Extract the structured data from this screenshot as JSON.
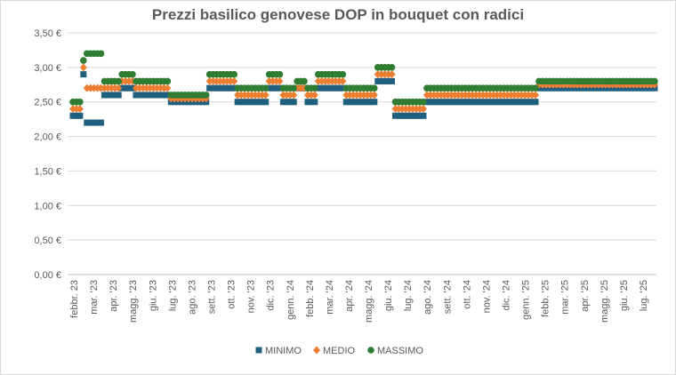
{
  "chart_data": {
    "type": "scatter",
    "title": "Prezzi basilico genovese DOP in bouquet con radici",
    "xlabel": "",
    "ylabel": "",
    "ylim": [
      0,
      3.5
    ],
    "y_ticks": [
      "0,00 €",
      "0,50 €",
      "1,00 €",
      "1,50 €",
      "2,00 €",
      "2,50 €",
      "3,00 €",
      "3,50 €"
    ],
    "grid": true,
    "legend_position": "bottom",
    "x_tick_labels": [
      "febbr. 23",
      "mar. '23",
      "apr. '23",
      "magg. '23",
      "giu. '23",
      "lug. '23",
      "ago. '23",
      "sett. '23",
      "ott. '23",
      "nov. '23",
      "dic. '23",
      "genn. '24",
      "febb. '24",
      "mar. '24",
      "apr. '24",
      "magg. '24",
      "giu. '24",
      "lug. '24",
      "ago. '24",
      "sett. '24",
      "ott. '24",
      "nov. '24",
      "dic. '24",
      "genn. '25",
      "febb. '25",
      "mar. '25",
      "apr. '25",
      "magg. '25",
      "giu. '25",
      "lug. '25"
    ],
    "week_blocks": [
      {
        "weeks": 3,
        "min": 2.3,
        "med": 2.4,
        "max": 2.5
      },
      {
        "weeks": 1,
        "min": 2.9,
        "med": 3.0,
        "max": 3.1
      },
      {
        "weeks": 5,
        "min": 2.2,
        "med": 2.7,
        "max": 3.2
      },
      {
        "weeks": 5,
        "min": 2.6,
        "med": 2.7,
        "max": 2.8
      },
      {
        "weeks": 4,
        "min": 2.7,
        "med": 2.8,
        "max": 2.9
      },
      {
        "weeks": 10,
        "min": 2.6,
        "med": 2.7,
        "max": 2.8
      },
      {
        "weeks": 11,
        "min": 2.5,
        "med": 2.55,
        "max": 2.6
      },
      {
        "weeks": 8,
        "min": 2.7,
        "med": 2.8,
        "max": 2.9
      },
      {
        "weeks": 9,
        "min": 2.5,
        "med": 2.6,
        "max": 2.7
      },
      {
        "weeks": 4,
        "min": 2.7,
        "med": 2.8,
        "max": 2.9
      },
      {
        "weeks": 4,
        "min": 2.5,
        "med": 2.6,
        "max": 2.7
      },
      {
        "weeks": 3,
        "min": 2.7,
        "med": 2.7,
        "max": 2.8
      },
      {
        "weeks": 3,
        "min": 2.5,
        "med": 2.6,
        "max": 2.7
      },
      {
        "weeks": 8,
        "min": 2.7,
        "med": 2.8,
        "max": 2.9
      },
      {
        "weeks": 9,
        "min": 2.5,
        "med": 2.6,
        "max": 2.7
      },
      {
        "weeks": 5,
        "min": 2.8,
        "med": 2.9,
        "max": 3.0
      },
      {
        "weeks": 9,
        "min": 2.3,
        "med": 2.4,
        "max": 2.5
      },
      {
        "weeks": 32,
        "min": 2.5,
        "med": 2.6,
        "max": 2.7
      },
      {
        "weeks": 34,
        "min": 2.7,
        "med": 2.75,
        "max": 2.8
      }
    ],
    "series": [
      {
        "name": "MINIMO",
        "key": "min",
        "color": "#1f5f7f",
        "marker": "square"
      },
      {
        "name": "MEDIO",
        "key": "med",
        "color": "#ed7d31",
        "marker": "diamond"
      },
      {
        "name": "MASSIMO",
        "key": "max",
        "color": "#2e7d32",
        "marker": "circle"
      }
    ]
  }
}
